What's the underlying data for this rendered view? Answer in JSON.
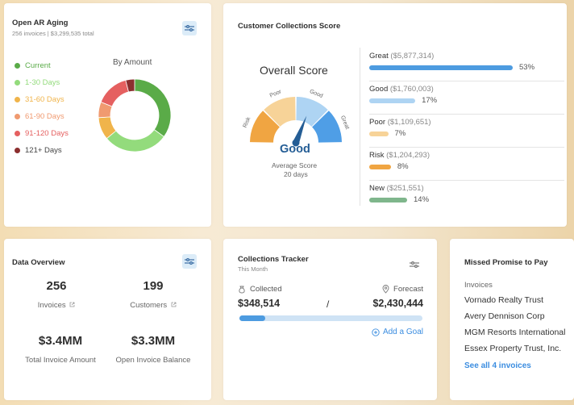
{
  "ar_aging": {
    "title": "Open AR Aging",
    "subtitle": "256 invoices | $3,299,535 total",
    "chart_label": "By Amount",
    "legend": [
      {
        "label": "Current",
        "color": "#5aab48"
      },
      {
        "label": "1-30 Days",
        "color": "#93db7c"
      },
      {
        "label": "31-60 Days",
        "color": "#f0b44b"
      },
      {
        "label": "61-90 Days",
        "color": "#f09a70"
      },
      {
        "label": "91-120 Days",
        "color": "#e56060"
      },
      {
        "label": "121+ Days",
        "color": "#8b2f2f"
      }
    ],
    "chart_data": {
      "type": "pie",
      "title": "By Amount",
      "categories": [
        "Current",
        "1-30 Days",
        "31-60 Days",
        "61-90 Days",
        "91-120 Days",
        "121+ Days"
      ],
      "values": [
        35,
        29,
        10,
        7,
        15,
        4
      ],
      "unit": "percent of amount (estimated)"
    }
  },
  "collections_score": {
    "title": "Customer Collections Score",
    "overall_label": "Overall Score",
    "gauge_labels": [
      "Risk",
      "Poor",
      "Good",
      "Great"
    ],
    "gauge_colors": [
      "#f0a542",
      "#f7d398",
      "#aed4f3",
      "#4f9ee6"
    ],
    "gauge_value": 62,
    "score_text": "Good",
    "avg_label": "Average Score",
    "avg_days": "20 days",
    "rows": [
      {
        "name": "Great",
        "amount": "($5,877,314)",
        "pct": "53%",
        "value": 53,
        "color": "#4d9be0"
      },
      {
        "name": "Good",
        "amount": "($1,760,003)",
        "pct": "17%",
        "value": 17,
        "color": "#aed4f3"
      },
      {
        "name": "Poor",
        "amount": "($1,109,651)",
        "pct": "7%",
        "value": 7,
        "color": "#f7d398"
      },
      {
        "name": "Risk",
        "amount": "($1,204,293)",
        "pct": "8%",
        "value": 8,
        "color": "#f0a542"
      },
      {
        "name": "New",
        "amount": "($251,551)",
        "pct": "14%",
        "value": 14,
        "color": "#7fb68c"
      }
    ]
  },
  "data_overview": {
    "title": "Data Overview",
    "invoices_value": "256",
    "invoices_label": "Invoices",
    "customers_value": "199",
    "customers_label": "Customers",
    "total_value": "$3.4MM",
    "total_label": "Total Invoice Amount",
    "balance_value": "$3.3MM",
    "balance_label": "Open Invoice Balance"
  },
  "tracker": {
    "title": "Collections Tracker",
    "subtitle": "This Month",
    "collected_label": "Collected",
    "collected_value": "$348,514",
    "separator": "/",
    "forecast_label": "Forecast",
    "forecast_value": "$2,430,444",
    "progress": 14.3,
    "add_goal": "Add a Goal"
  },
  "missed_promise": {
    "title": "Missed Promise to Pay",
    "section_label": "Invoices",
    "items": [
      "Vornado Realty Trust",
      "Avery Dennison Corp",
      "MGM Resorts International",
      "Essex Property Trust, Inc."
    ],
    "see_all": "See all 4 invoices"
  }
}
